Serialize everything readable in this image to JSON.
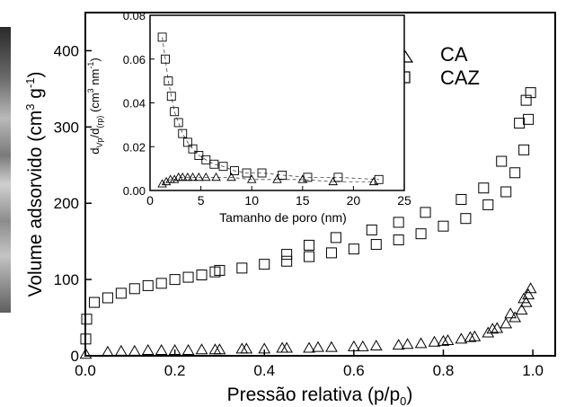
{
  "chart_data": [
    {
      "type": "scatter",
      "title": "",
      "xlabel": "Pressão relativa (p/p",
      "xlabel_sub": "0",
      "xlabel_close": ")",
      "ylabel": "Volume adsorvido (cm",
      "ylabel_sup1": "3",
      "ylabel_mid": " g",
      "ylabel_sup2": "-1",
      "ylabel_close": ")",
      "xlim": [
        0.0,
        1.05
      ],
      "ylim": [
        0,
        450
      ],
      "xticks": [
        "0.0",
        "0.2",
        "0.4",
        "0.6",
        "0.8",
        "1.0"
      ],
      "xtick_values": [
        0.0,
        0.2,
        0.4,
        0.6,
        0.8,
        1.0
      ],
      "yticks": [
        "0",
        "100",
        "200",
        "300",
        "400"
      ],
      "ytick_values": [
        0,
        100,
        200,
        300,
        400
      ],
      "legend_position": "top-right",
      "series": [
        {
          "name": "CA",
          "marker": "triangle",
          "x": [
            0.001,
            0.05,
            0.08,
            0.11,
            0.14,
            0.17,
            0.2,
            0.23,
            0.26,
            0.29,
            0.35,
            0.4,
            0.45,
            0.5,
            0.55,
            0.6,
            0.65,
            0.7,
            0.75,
            0.78,
            0.81,
            0.84,
            0.87,
            0.9,
            0.92,
            0.94,
            0.96,
            0.975,
            0.985,
            0.99,
            0.995,
            0.98,
            0.95,
            0.91,
            0.86,
            0.8,
            0.72,
            0.62,
            0.52,
            0.44,
            0.36,
            0.3
          ],
          "y": [
            2,
            5,
            6,
            6,
            7,
            7,
            7,
            7,
            8,
            8,
            9,
            9,
            10,
            10,
            11,
            12,
            13,
            14,
            16,
            18,
            20,
            22,
            25,
            30,
            36,
            42,
            50,
            60,
            70,
            80,
            88,
            75,
            55,
            35,
            24,
            19,
            15,
            12,
            11,
            10,
            9,
            8
          ]
        },
        {
          "name": "CAZ",
          "marker": "square",
          "x": [
            0.001,
            0.003,
            0.02,
            0.05,
            0.08,
            0.11,
            0.14,
            0.17,
            0.2,
            0.23,
            0.26,
            0.29,
            0.35,
            0.4,
            0.45,
            0.5,
            0.55,
            0.6,
            0.65,
            0.7,
            0.75,
            0.8,
            0.85,
            0.9,
            0.94,
            0.96,
            0.98,
            0.99,
            0.995,
            0.985,
            0.97,
            0.93,
            0.89,
            0.84,
            0.76,
            0.7,
            0.64,
            0.56,
            0.5,
            0.45,
            0.3
          ],
          "y": [
            22,
            48,
            70,
            76,
            82,
            88,
            92,
            95,
            100,
            103,
            106,
            110,
            115,
            120,
            124,
            130,
            135,
            140,
            146,
            152,
            160,
            170,
            180,
            198,
            215,
            240,
            270,
            310,
            345,
            335,
            305,
            255,
            220,
            205,
            188,
            175,
            165,
            155,
            145,
            133,
            112
          ]
        }
      ]
    },
    {
      "type": "scatter",
      "title": "",
      "xlabel": "Tamanho de poro (nm)",
      "ylabel": "d",
      "ylabel_sub1": "Vp",
      "ylabel_mid": "/d",
      "ylabel_sub2": "(rp)",
      "ylabel_units_open": " (cm",
      "ylabel_sup1": "3",
      "ylabel_units_mid": " nm",
      "ylabel_sup2": "-1",
      "ylabel_units_close": ")",
      "xlim": [
        0,
        25
      ],
      "ylim": [
        0.0,
        0.08
      ],
      "xticks": [
        "0",
        "5",
        "10",
        "15",
        "20",
        "25"
      ],
      "xtick_values": [
        0,
        5,
        10,
        15,
        20,
        25
      ],
      "yticks": [
        "0.00",
        "0.02",
        "0.04",
        "0.06",
        "0.08"
      ],
      "ytick_values": [
        0.0,
        0.02,
        0.04,
        0.06,
        0.08
      ],
      "series": [
        {
          "name": "CA",
          "marker": "triangle",
          "x": [
            1.2,
            1.6,
            2.0,
            2.4,
            2.8,
            3.2,
            3.7,
            4.2,
            4.8,
            5.5,
            6.5,
            8.0,
            10.0,
            12.5,
            15.0,
            18.0,
            22.0
          ],
          "y": [
            0.003,
            0.004,
            0.005,
            0.005,
            0.006,
            0.006,
            0.006,
            0.006,
            0.006,
            0.006,
            0.006,
            0.006,
            0.005,
            0.005,
            0.005,
            0.004,
            0.004
          ]
        },
        {
          "name": "CAZ",
          "marker": "square",
          "x": [
            1.2,
            1.5,
            1.8,
            2.1,
            2.4,
            2.8,
            3.2,
            3.7,
            4.2,
            4.8,
            5.5,
            6.3,
            7.2,
            8.3,
            9.5,
            11.0,
            13.0,
            15.5,
            18.5,
            22.5
          ],
          "y": [
            0.07,
            0.06,
            0.05,
            0.043,
            0.036,
            0.031,
            0.026,
            0.022,
            0.019,
            0.016,
            0.014,
            0.012,
            0.011,
            0.009,
            0.008,
            0.008,
            0.007,
            0.006,
            0.006,
            0.005
          ]
        }
      ]
    }
  ]
}
